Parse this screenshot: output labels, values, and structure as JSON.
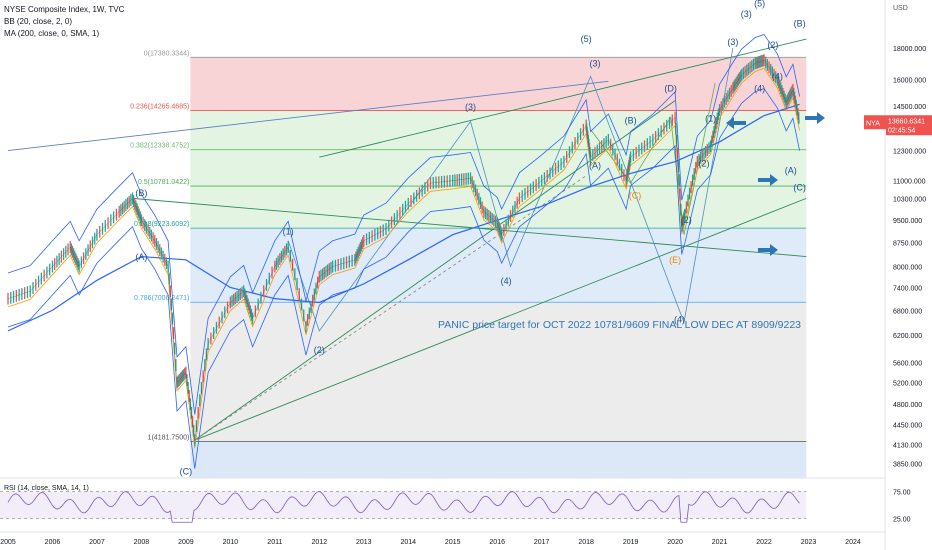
{
  "header": {
    "title": "NYSE Composite Index, 1W, TVC",
    "indicator_bb": "BB (20, close, 2, 0)",
    "indicator_ma": "MA (200, close, 0, SMA, 1)"
  },
  "price_label": {
    "symbol": "NYA",
    "price": "13660.6341",
    "countdown": "02:45:54"
  },
  "chart_data": {
    "type": "line",
    "title": "NYSE Composite Index, 1W, TVC",
    "log_scale": true,
    "currency": "USD",
    "x_ticks": [
      "2005",
      "2006",
      "2007",
      "2008",
      "2009",
      "2010",
      "2011",
      "2012",
      "2013",
      "2014",
      "2015",
      "2016",
      "2017",
      "2018",
      "2019",
      "2020",
      "2021",
      "2022",
      "2023",
      "2024"
    ],
    "y_ticks": [
      "18000.000",
      "16000.000",
      "14500.000",
      "12300.000",
      "11000.000",
      "10300.000",
      "9500.000",
      "8750.000",
      "8000.000",
      "7400.000",
      "6800.000",
      "6200.000",
      "5600.000",
      "5200.000",
      "4800.000",
      "4450.000",
      "4130.000",
      "3850.000"
    ],
    "ylim": [
      3650,
      21500
    ],
    "price_series": {
      "name": "NYA close (approx.)",
      "x": [
        2005.0,
        2005.5,
        2006.0,
        2006.4,
        2006.6,
        2007.0,
        2007.5,
        2007.8,
        2008.0,
        2008.3,
        2008.6,
        2008.8,
        2009.0,
        2009.2,
        2009.5,
        2010.0,
        2010.3,
        2010.5,
        2011.0,
        2011.3,
        2011.7,
        2012.0,
        2012.3,
        2012.8,
        2013.0,
        2013.5,
        2014.0,
        2014.5,
        2015.0,
        2015.4,
        2015.7,
        2016.0,
        2016.1,
        2016.5,
        2017.0,
        2017.5,
        2018.0,
        2018.1,
        2018.5,
        2018.9,
        2019.0,
        2019.5,
        2020.0,
        2020.15,
        2020.22,
        2020.5,
        2020.8,
        2021.0,
        2021.3,
        2021.5,
        2021.8,
        2022.0,
        2022.3,
        2022.5,
        2022.65,
        2022.8
      ],
      "y": [
        7100,
        7300,
        8000,
        8600,
        8000,
        9000,
        9800,
        10300,
        9500,
        8800,
        8000,
        5200,
        5400,
        4200,
        6000,
        7000,
        7300,
        6600,
        8000,
        8600,
        6400,
        7700,
        8000,
        8200,
        8800,
        9200,
        10100,
        10900,
        11000,
        11100,
        9800,
        9400,
        9000,
        10300,
        11000,
        11800,
        13500,
        12000,
        12800,
        11000,
        12000,
        12800,
        13900,
        9300,
        9700,
        11800,
        12500,
        14300,
        15500,
        16300,
        17000,
        17200,
        16000,
        14700,
        15400,
        13660
      ]
    },
    "ma200": {
      "name": "MA (200, close, 0, SMA, 1)",
      "x": [
        2005.0,
        2006.0,
        2007.0,
        2008.0,
        2009.0,
        2010.0,
        2011.0,
        2012.0,
        2013.0,
        2014.0,
        2015.0,
        2016.0,
        2017.0,
        2018.0,
        2019.0,
        2020.0,
        2021.0,
        2022.0,
        2022.8
      ],
      "y": [
        6300,
        6800,
        7600,
        8300,
        8200,
        7400,
        7100,
        7000,
        7500,
        8200,
        9000,
        9500,
        10000,
        10700,
        11300,
        11800,
        12700,
        14000,
        14600
      ]
    },
    "fibonacci": [
      {
        "ratio": "0",
        "value": "17380.3344"
      },
      {
        "ratio": "0.236",
        "value": "14265.4685"
      },
      {
        "ratio": "0.382",
        "value": "12338.4752"
      },
      {
        "ratio": "0.5",
        "value": "10781.0422"
      },
      {
        "ratio": "0.618",
        "value": "9223.6092"
      },
      {
        "ratio": "0.786",
        "value": "7006.2471"
      },
      {
        "ratio": "1",
        "value": "4181.7500"
      }
    ],
    "annotation": "PANIC price target for OCT 2022  10781/9609 FINAL LOW  DEC AT 8909/9223",
    "wave_labels": [
      "(A)",
      "(B)",
      "(C)",
      "(1)",
      "(2)",
      "(3)",
      "(4)",
      "(5)",
      "(D)",
      "(E)"
    ],
    "rsi": {
      "label": "RSI (14, close, SMA, 14, 1)",
      "levels": [
        "75.00",
        "25.00"
      ]
    }
  },
  "colors": {
    "price_up": "#26a69a",
    "price_down": "#ef5350",
    "bollinger": "#2962ff",
    "ma": "#2962ff",
    "fib_red": "#f7c6c9",
    "fib_green": "#d9f0d9",
    "fib_blue": "#d6e4f7",
    "fib_gray": "#e6e6e6",
    "arrow": "#2e75b6",
    "rsi": "#7e57c2"
  }
}
